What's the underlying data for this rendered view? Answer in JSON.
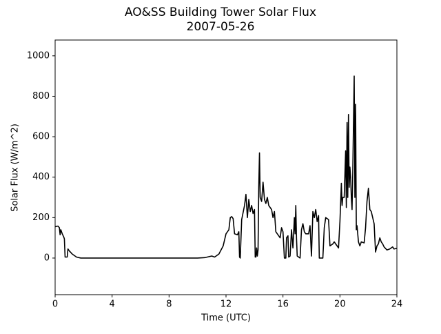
{
  "chart_data": {
    "type": "line",
    "title": "AO&SS Building Tower Solar Flux",
    "subtitle": "2007-05-26",
    "x_label": "Time (UTC)",
    "y_label": "Solar Flux (W/m^2)",
    "grid": false,
    "xlim": [
      0,
      24
    ],
    "xticks": [
      0,
      4,
      8,
      12,
      16,
      20,
      24
    ],
    "ylim": [
      -181,
      1078
    ],
    "yticks": [
      0,
      200,
      400,
      600,
      800,
      1000
    ],
    "x": [
      0,
      0.2,
      0.3,
      0.35,
      0.4,
      0.5,
      0.6,
      0.65,
      0.7,
      0.85,
      0.9,
      1.0,
      1.2,
      1.5,
      1.8,
      4,
      8,
      10,
      10.5,
      11,
      11.2,
      11.5,
      11.8,
      12,
      12.2,
      12.3,
      12.4,
      12.5,
      12.6,
      12.8,
      12.9,
      12.95,
      13.0,
      13.1,
      13.3,
      13.4,
      13.5,
      13.6,
      13.7,
      13.8,
      13.9,
      14.0,
      14.05,
      14.1,
      14.15,
      14.2,
      14.25,
      14.3,
      14.35,
      14.4,
      14.5,
      14.6,
      14.7,
      14.8,
      14.9,
      15.0,
      15.2,
      15.3,
      15.4,
      15.5,
      15.6,
      15.7,
      15.8,
      15.9,
      16.0,
      16.1,
      16.2,
      16.25,
      16.35,
      16.4,
      16.5,
      16.6,
      16.7,
      16.8,
      16.85,
      16.9,
      16.95,
      17.0,
      17.2,
      17.3,
      17.4,
      17.5,
      17.6,
      17.8,
      17.9,
      18.0,
      18.1,
      18.2,
      18.3,
      18.4,
      18.5,
      18.55,
      18.8,
      18.9,
      19.0,
      19.2,
      19.3,
      19.5,
      19.6,
      19.8,
      19.9,
      20.0,
      20.1,
      20.15,
      20.2,
      20.3,
      20.4,
      20.45,
      20.5,
      20.55,
      20.6,
      20.65,
      20.7,
      20.75,
      20.8,
      20.85,
      20.9,
      21.0,
      21.05,
      21.1,
      21.15,
      21.2,
      21.3,
      21.4,
      21.5,
      21.7,
      21.8,
      21.9,
      22.0,
      22.1,
      22.2,
      22.4,
      22.5,
      22.6,
      22.7,
      22.8,
      22.9,
      23.0,
      23.1,
      23.3,
      23.5,
      23.7,
      23.8,
      24.0
    ],
    "series": [
      {
        "name": "Solar Flux",
        "color": "#000000",
        "values": [
          155,
          158,
          150,
          115,
          140,
          120,
          105,
          95,
          5,
          5,
          45,
          35,
          20,
          5,
          0,
          0,
          0,
          0,
          2,
          10,
          5,
          20,
          60,
          120,
          140,
          200,
          205,
          195,
          120,
          115,
          130,
          5,
          0,
          190,
          260,
          315,
          200,
          290,
          230,
          260,
          220,
          240,
          5,
          5,
          50,
          10,
          40,
          350,
          520,
          300,
          280,
          375,
          290,
          270,
          300,
          260,
          240,
          200,
          230,
          130,
          120,
          110,
          100,
          150,
          130,
          0,
          0,
          100,
          110,
          5,
          10,
          140,
          50,
          200,
          120,
          260,
          100,
          10,
          0,
          140,
          170,
          130,
          120,
          120,
          160,
          10,
          230,
          200,
          240,
          180,
          210,
          0,
          0,
          150,
          200,
          190,
          60,
          70,
          80,
          60,
          50,
          180,
          370,
          260,
          300,
          300,
          530,
          250,
          670,
          300,
          710,
          350,
          450,
          400,
          300,
          240,
          420,
          900,
          300,
          760,
          140,
          160,
          80,
          60,
          80,
          75,
          150,
          280,
          345,
          240,
          230,
          170,
          30,
          60,
          70,
          100,
          80,
          70,
          55,
          40,
          45,
          55,
          45,
          48
        ]
      }
    ]
  }
}
